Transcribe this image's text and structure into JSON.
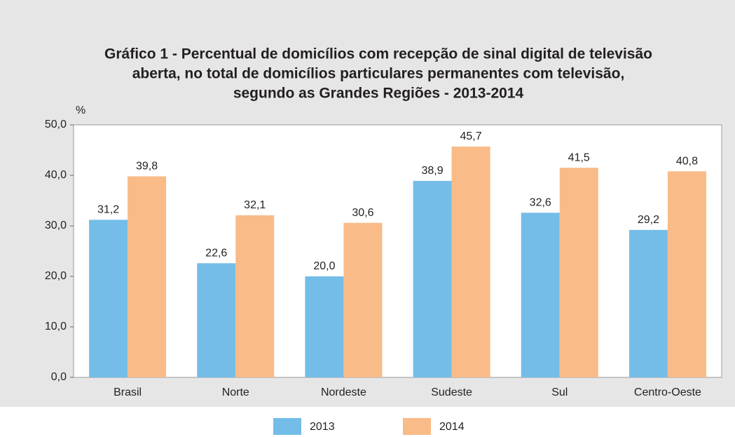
{
  "chart_data": {
    "type": "bar",
    "title": [
      "Gráfico 1 - Percentual de domicílios com recepção de sinal digital de televisão",
      "aberta, no total de domicílios particulares permanentes com televisão,",
      "segundo as Grandes Regiões - 2013-2014"
    ],
    "y_label": "%",
    "categories": [
      "Brasil",
      "Norte",
      "Nordeste",
      "Sudeste",
      "Sul",
      "Centro-Oeste"
    ],
    "series": [
      {
        "name": "2013",
        "color": "#74bde8",
        "values": [
          31.2,
          22.6,
          20.0,
          38.9,
          32.6,
          29.2
        ],
        "value_labels": [
          "31,2",
          "22,6",
          "20,0",
          "38,9",
          "32,6",
          "29,2"
        ]
      },
      {
        "name": "2014",
        "color": "#f9bb87",
        "values": [
          39.8,
          32.1,
          30.6,
          45.7,
          41.5,
          40.8
        ],
        "value_labels": [
          "39,8",
          "32,1",
          "30,6",
          "45,7",
          "41,5",
          "40,8"
        ]
      }
    ],
    "ylim": [
      0,
      50
    ],
    "yticks": [
      {
        "value": 0,
        "label": "0,0"
      },
      {
        "value": 10,
        "label": "10,0"
      },
      {
        "value": 20,
        "label": "20,0"
      },
      {
        "value": 30,
        "label": "30,0"
      },
      {
        "value": 40,
        "label": "40,0"
      },
      {
        "value": 50,
        "label": "50,0"
      }
    ],
    "grid": false
  }
}
